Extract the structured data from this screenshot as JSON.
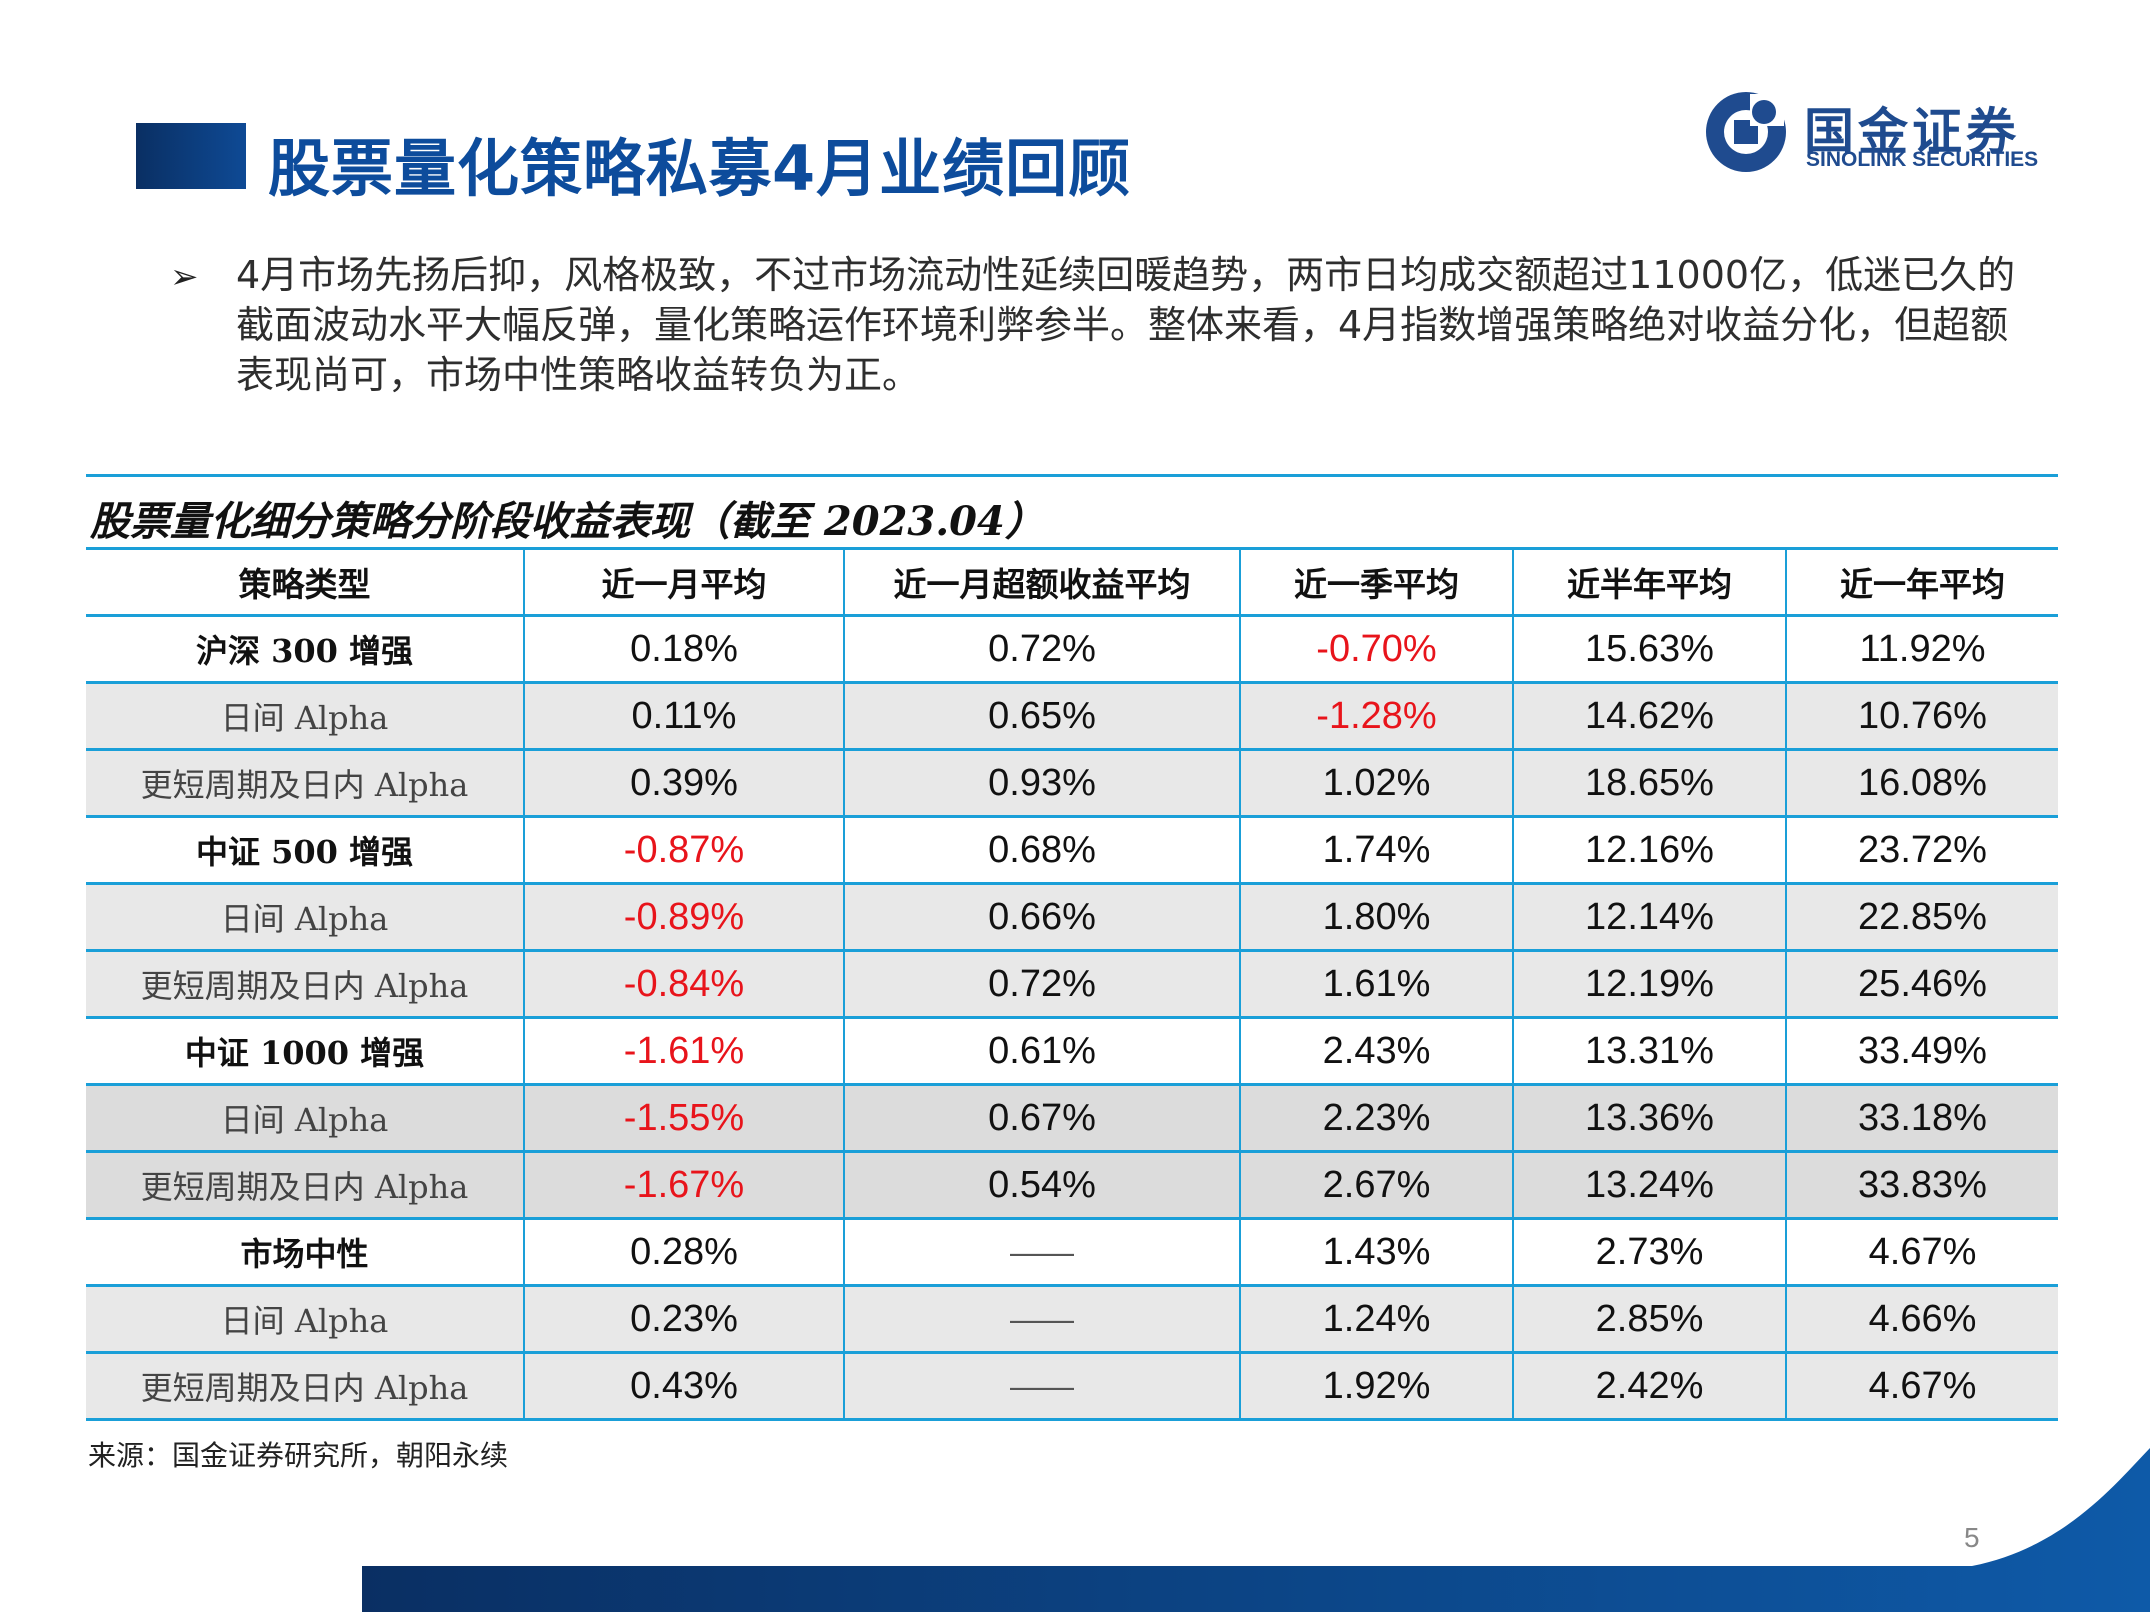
{
  "header": {
    "title": "股票量化策略私募4月业绩回顾",
    "logo_cn": "国金证券",
    "logo_en": "SINOLINK SECURITIES"
  },
  "summary": {
    "bullet_icon": "arrow-bullet-icon",
    "text": "4月市场先扬后抑，风格极致，不过市场流动性延续回暖趋势，两市日均成交额超过11000亿，低迷已久的截面波动水平大幅反弹，量化策略运作环境利弊参半。整体来看，4月指数增强策略绝对收益分化，但超额表现尚可，市场中性策略收益转负为正。"
  },
  "table": {
    "title": "股票量化细分策略分阶段收益表现（截至 2023.04）",
    "headers": [
      "策略类型",
      "近一月平均",
      "近一月超额收益平均",
      "近一季平均",
      "近半年平均",
      "近一年平均"
    ],
    "rows": [
      {
        "label": "沪深 300 增强",
        "cells": [
          "0.18%",
          "0.72%",
          "-0.70%",
          "15.63%",
          "11.92%"
        ]
      },
      {
        "label": "日间 Alpha",
        "cells": [
          "0.11%",
          "0.65%",
          "-1.28%",
          "14.62%",
          "10.76%"
        ]
      },
      {
        "label": "更短周期及日内 Alpha",
        "cells": [
          "0.39%",
          "0.93%",
          "1.02%",
          "18.65%",
          "16.08%"
        ]
      },
      {
        "label": "中证 500 增强",
        "cells": [
          "-0.87%",
          "0.68%",
          "1.74%",
          "12.16%",
          "23.72%"
        ]
      },
      {
        "label": "日间 Alpha",
        "cells": [
          "-0.89%",
          "0.66%",
          "1.80%",
          "12.14%",
          "22.85%"
        ]
      },
      {
        "label": "更短周期及日内 Alpha",
        "cells": [
          "-0.84%",
          "0.72%",
          "1.61%",
          "12.19%",
          "25.46%"
        ]
      },
      {
        "label": "中证 1000 增强",
        "cells": [
          "-1.61%",
          "0.61%",
          "2.43%",
          "13.31%",
          "33.49%"
        ]
      },
      {
        "label": "日间 Alpha",
        "cells": [
          "-1.55%",
          "0.67%",
          "2.23%",
          "13.36%",
          "33.18%"
        ]
      },
      {
        "label": "更短周期及日内 Alpha",
        "cells": [
          "-1.67%",
          "0.54%",
          "2.67%",
          "13.24%",
          "33.83%"
        ]
      },
      {
        "label": "市场中性",
        "cells": [
          "0.28%",
          "——",
          "1.43%",
          "2.73%",
          "4.67%"
        ]
      },
      {
        "label": "日间 Alpha",
        "cells": [
          "0.23%",
          "——",
          "1.24%",
          "2.85%",
          "4.66%"
        ]
      },
      {
        "label": "更短周期及日内 Alpha",
        "cells": [
          "0.43%",
          "——",
          "1.92%",
          "2.42%",
          "4.67%"
        ]
      }
    ]
  },
  "footer": {
    "source": "来源：国金证券研究所，朝阳永续",
    "page_number": "5"
  },
  "colors": {
    "title_blue": "#0d4c9c",
    "table_border": "#1a9fd8",
    "negative_red": "#e8141b",
    "footer_navy": "#0a2f63"
  }
}
